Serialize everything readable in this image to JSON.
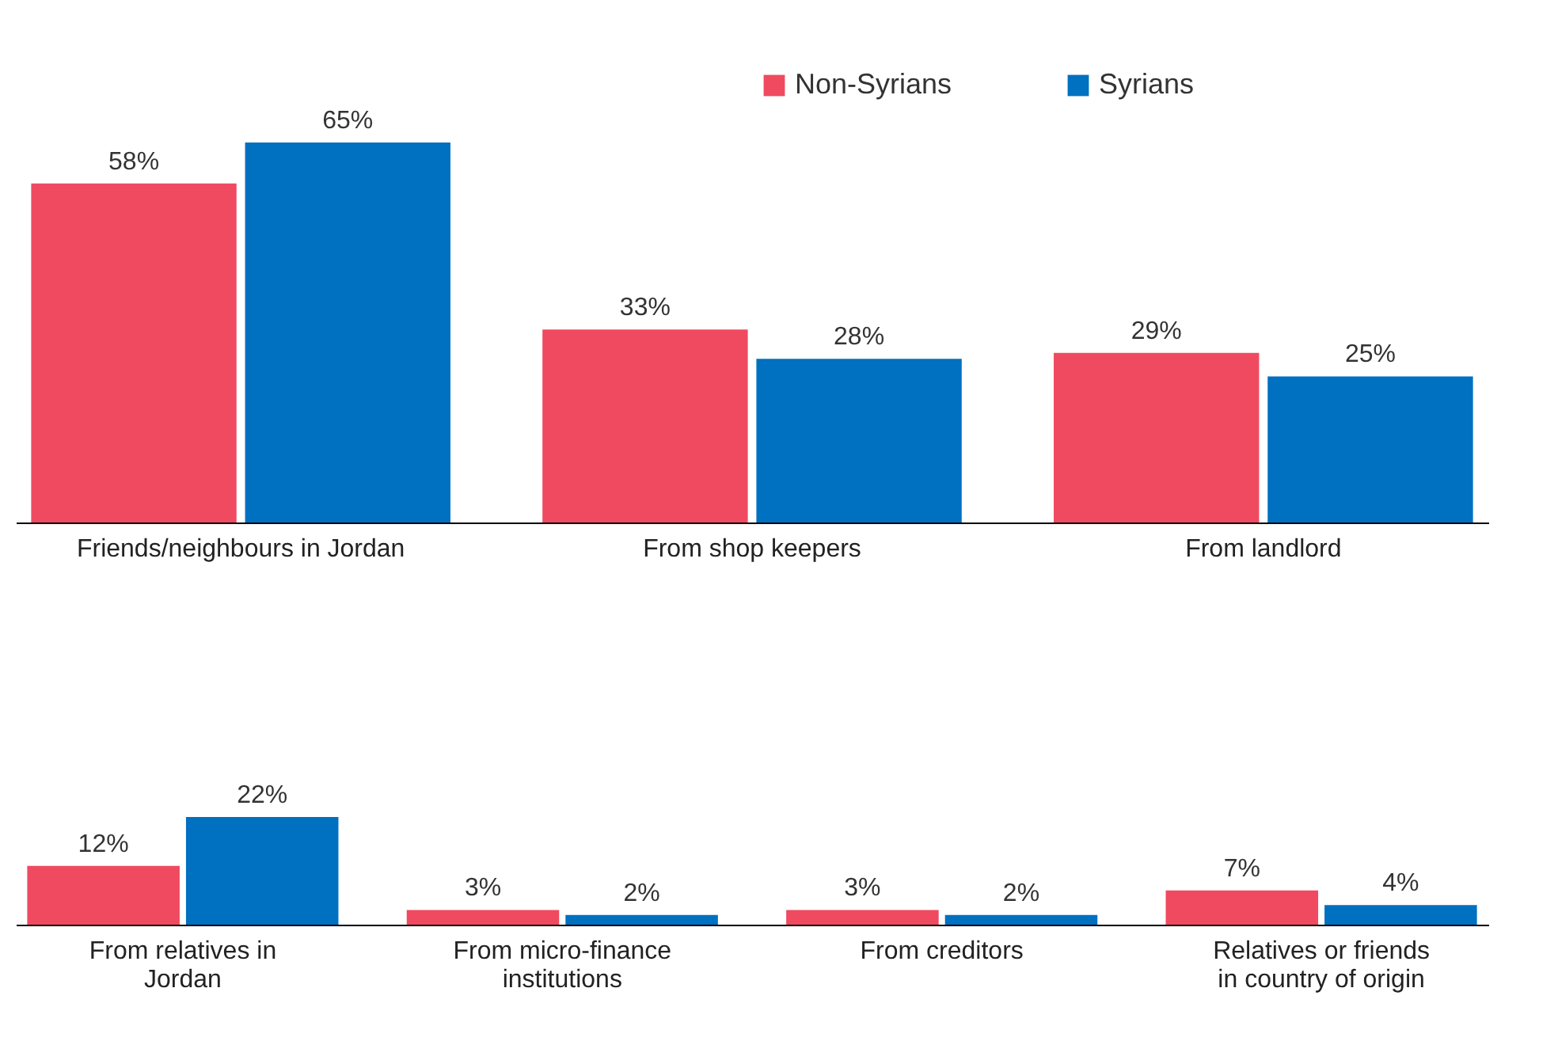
{
  "chart_data": [
    {
      "type": "bar",
      "categories": [
        "Friends/neighbours in Jordan",
        "From shop keepers",
        "From landlord"
      ],
      "series": [
        {
          "name": "Non-Syrians",
          "color": "#ef4a60",
          "values": [
            58,
            33,
            29
          ],
          "value_labels": [
            "58%",
            "33%",
            "29%"
          ]
        },
        {
          "name": "Syrians",
          "color": "#0070c0",
          "values": [
            65,
            28,
            25
          ],
          "value_labels": [
            "65%",
            "28%",
            "25%"
          ]
        }
      ],
      "legend": "top right",
      "grid": false
    },
    {
      "type": "bar",
      "categories": [
        "From relatives in Jordan",
        "From micro-finance institutions",
        "From creditors",
        "Relatives or friends in country of origin"
      ],
      "series": [
        {
          "name": "Non-Syrians",
          "color": "#ef4a60",
          "values": [
            12,
            3,
            3,
            7
          ],
          "value_labels": [
            "12%",
            "3%",
            "3%",
            "7%"
          ]
        },
        {
          "name": "Syrians",
          "color": "#0070c0",
          "values": [
            22,
            2,
            2,
            4
          ],
          "value_labels": [
            "22%",
            "2%",
            "2%",
            "4%"
          ]
        }
      ],
      "legend": false,
      "grid": false
    }
  ]
}
